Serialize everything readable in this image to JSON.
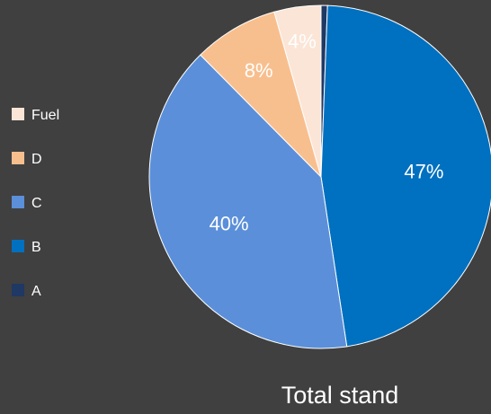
{
  "chart_data": {
    "type": "pie",
    "title": "Total stand",
    "legend_position": "left",
    "categories": [
      "A",
      "B",
      "C",
      "D",
      "Fuel"
    ],
    "values": [
      0.6,
      47,
      40,
      8,
      4.4
    ],
    "data_labels": [
      "",
      "47%",
      "40%",
      "8%",
      "4%"
    ],
    "legend_order": [
      "Fuel",
      "D",
      "C",
      "B",
      "A"
    ],
    "colors": {
      "A": "#1f3864",
      "B": "#0070c0",
      "C": "#5b8fd9",
      "D": "#f8bf8e",
      "Fuel": "#fbe5d6"
    },
    "label_colors": {
      "A": "#ffffff",
      "B": "#ffffff",
      "C": "#ffffff",
      "D": "#ffffff",
      "Fuel": "#ffffff"
    },
    "background": "#404040"
  }
}
